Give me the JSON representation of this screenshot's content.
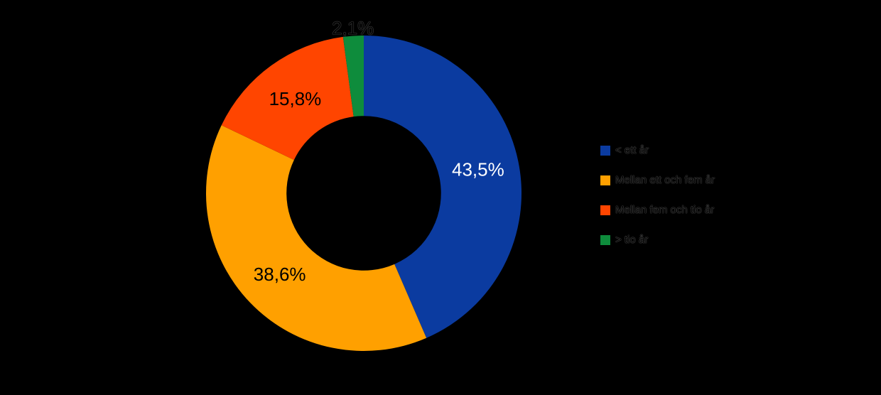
{
  "background": "#000000",
  "chart_data": {
    "type": "pie",
    "subtype": "donut",
    "title": "",
    "categories": [
      "< ett år",
      "Mellan ett och fem år",
      "Mellan fem och tio år",
      "> tio år"
    ],
    "values": [
      43.5,
      38.6,
      15.8,
      2.1
    ],
    "labels": [
      "43,5%",
      "38,6%",
      "15,8%",
      "2,1%"
    ],
    "colors": [
      "#0B3BA0",
      "#FFA000",
      "#FF4500",
      "#0E8C3C"
    ],
    "label_colors": [
      "#ffffff",
      "#000000",
      "#000000",
      "#000000"
    ],
    "label_outside": [
      false,
      false,
      false,
      true
    ],
    "start_angle_deg": 0,
    "direction": "clockwise",
    "hole_ratio": 0.49,
    "legend_position": "right",
    "grid": false
  },
  "legend": {
    "items": [
      {
        "label": "< ett år",
        "color": "#0B3BA0"
      },
      {
        "label": "Mellan ett och fem år",
        "color": "#FFA000"
      },
      {
        "label": "Mellan fem och tio år",
        "color": "#FF4500"
      },
      {
        "label": "> tio år",
        "color": "#0E8C3C"
      }
    ]
  }
}
